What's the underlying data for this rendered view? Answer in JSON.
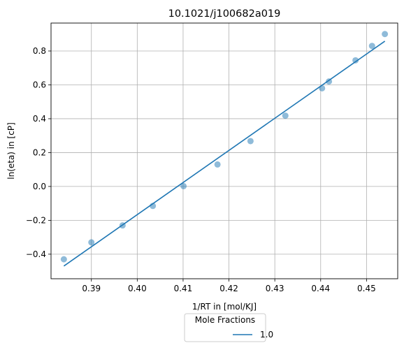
{
  "chart_data": {
    "type": "scatter",
    "title": "10.1021/j100682a019",
    "xlabel": "1/RT in [mol/KJ]",
    "ylabel": "ln(eta) in [cP]",
    "xlim": [
      0.3812,
      0.4568
    ],
    "ylim": [
      -0.545,
      0.965
    ],
    "xticks": [
      0.39,
      0.4,
      0.41,
      0.42,
      0.43,
      0.44,
      0.45
    ],
    "xtick_labels": [
      "0.39",
      "0.40",
      "0.41",
      "0.42",
      "0.43",
      "0.44",
      "0.45"
    ],
    "yticks": [
      -0.4,
      -0.2,
      0.0,
      0.2,
      0.4,
      0.6,
      0.8
    ],
    "ytick_labels": [
      "−0.4",
      "−0.2",
      "0.0",
      "0.2",
      "0.4",
      "0.6",
      "0.8"
    ],
    "grid": true,
    "legend": {
      "title": "Mole Fractions",
      "placement": "below plot",
      "entries": [
        "1.0"
      ]
    },
    "colors": {
      "points": "#1f77b4",
      "line": "#1f77b4"
    },
    "series": [
      {
        "name": "1.0",
        "kind": "scatter",
        "x": [
          0.384,
          0.39,
          0.3968,
          0.4034,
          0.4101,
          0.4175,
          0.4247,
          0.4323,
          0.4403,
          0.4418,
          0.4476,
          0.4512,
          0.454
        ],
        "y": [
          -0.43,
          -0.33,
          -0.23,
          -0.115,
          0.002,
          0.13,
          0.268,
          0.418,
          0.58,
          0.62,
          0.745,
          0.83,
          0.9
        ]
      },
      {
        "name": "1.0",
        "kind": "line",
        "x": [
          0.384,
          0.454
        ],
        "y": [
          -0.47,
          0.858
        ]
      }
    ]
  }
}
